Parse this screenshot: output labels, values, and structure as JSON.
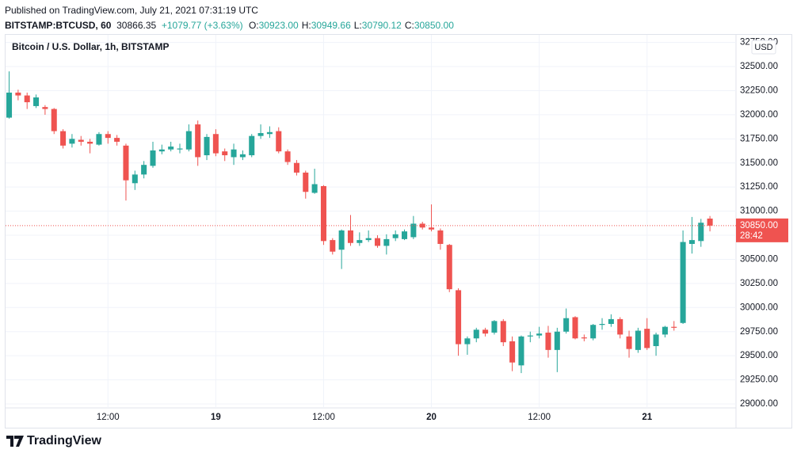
{
  "header": {
    "published": "Published on TradingView.com, July 21, 2021 07:31:19 UTC",
    "symbol": "BITSTAMP:BTCUSD, 60",
    "price": "30866.35",
    "change": "+1079.77 (+3.63%)",
    "ohlc": [
      {
        "label": "O:",
        "value": "30923.00"
      },
      {
        "label": "H:",
        "value": "30949.66"
      },
      {
        "label": "L:",
        "value": "30790.12"
      },
      {
        "label": "C:",
        "value": "30850.00"
      }
    ]
  },
  "footer": {
    "logo": "TradingView"
  },
  "chart_data": {
    "type": "candlestick",
    "title": "Bitcoin / U.S. Dollar, 1h, BITSTAMP",
    "currency": "USD",
    "up_color": "#26a69a",
    "down_color": "#ef5350",
    "grid": true,
    "x": [
      1,
      2,
      3,
      4,
      5,
      6,
      7,
      8,
      9,
      10,
      11,
      12,
      13,
      14,
      15,
      16,
      17,
      18,
      19,
      20,
      21,
      22,
      23,
      24,
      25,
      26,
      27,
      28,
      29,
      30,
      31,
      32,
      33,
      34,
      35,
      36,
      37,
      38,
      39,
      40,
      41,
      42,
      43,
      44,
      45,
      46,
      47,
      48,
      49,
      50,
      51,
      52,
      53,
      54,
      55,
      56,
      57,
      58,
      59,
      60,
      61,
      62,
      63,
      64,
      65,
      66,
      67,
      68,
      69,
      70,
      71,
      72,
      73,
      74,
      75,
      76,
      77,
      78,
      79
    ],
    "open": [
      31970,
      32230,
      32200,
      32090,
      32080,
      32060,
      31830,
      31700,
      31740,
      31720,
      31690,
      31800,
      31760,
      31680,
      31290,
      31380,
      31470,
      31620,
      31640,
      31640,
      31640,
      31900,
      31580,
      31800,
      31620,
      31560,
      31560,
      31580,
      31780,
      31800,
      31830,
      31620,
      31500,
      31400,
      31190,
      31260,
      30700,
      30600,
      30800,
      30670,
      30700,
      30720,
      30640,
      30720,
      30710,
      30730,
      30870,
      30830,
      30800,
      30650,
      30180,
      29620,
      29680,
      29770,
      29740,
      29860,
      29650,
      29400,
      29700,
      29710,
      29740,
      29560,
      29750,
      29900,
      29690,
      29680,
      29820,
      29830,
      29880,
      29700,
      29560,
      29780,
      29600,
      29720,
      29800,
      29840,
      30660,
      30690,
      30923
    ],
    "high": [
      32450,
      32260,
      32230,
      32210,
      32100,
      32070,
      31850,
      31800,
      31780,
      31750,
      31820,
      31830,
      31790,
      31700,
      31420,
      31520,
      31720,
      31690,
      31720,
      31700,
      31900,
      31940,
      31800,
      31850,
      31650,
      31700,
      31630,
      31800,
      31900,
      31880,
      31870,
      31640,
      31530,
      31420,
      31440,
      31270,
      30720,
      30810,
      30960,
      30780,
      30800,
      30750,
      30760,
      30800,
      30810,
      30950,
      30890,
      31070,
      30820,
      30660,
      30200,
      29700,
      29790,
      29790,
      29870,
      29880,
      29700,
      29710,
      29750,
      29800,
      29810,
      29790,
      29990,
      29910,
      29720,
      29830,
      29890,
      29930,
      29900,
      29760,
      29790,
      29890,
      29740,
      29810,
      29860,
      30800,
      30940,
      30920,
      30949.66
    ],
    "low": [
      31960,
      32150,
      32060,
      32070,
      32000,
      31800,
      31650,
      31660,
      31680,
      31600,
      31680,
      31700,
      31680,
      31110,
      31220,
      31340,
      31450,
      31590,
      31620,
      31600,
      31620,
      31470,
      31530,
      31570,
      31520,
      31480,
      31530,
      31560,
      31750,
      31760,
      31600,
      31480,
      31370,
      31130,
      31180,
      30650,
      30550,
      30400,
      30640,
      30640,
      30680,
      30620,
      30550,
      30690,
      30700,
      30710,
      30810,
      30790,
      30600,
      30160,
      29500,
      29510,
      29640,
      29700,
      29720,
      29600,
      29340,
      29320,
      29640,
      29680,
      29480,
      29330,
      29730,
      29670,
      29650,
      29660,
      29770,
      29800,
      29680,
      29480,
      29530,
      29560,
      29500,
      29690,
      29760,
      29830,
      30560,
      30630,
      30790.12
    ],
    "close": [
      32230,
      32200,
      32130,
      32180,
      32060,
      31830,
      31680,
      31750,
      31720,
      31700,
      31800,
      31760,
      31720,
      31320,
      31380,
      31480,
      31630,
      31640,
      31670,
      31650,
      31830,
      31560,
      31770,
      31600,
      31580,
      31640,
      31590,
      31780,
      31810,
      31820,
      31620,
      31510,
      31400,
      31200,
      31280,
      30690,
      30580,
      30800,
      30670,
      30700,
      30720,
      30640,
      30710,
      30760,
      30790,
      30870,
      30830,
      30810,
      30660,
      30190,
      29620,
      29680,
      29770,
      29730,
      29860,
      29640,
      29430,
      29700,
      29710,
      29730,
      29560,
      29750,
      29890,
      29680,
      29680,
      29820,
      29830,
      29880,
      29720,
      29570,
      29760,
      29580,
      29720,
      29800,
      29790,
      30680,
      30700,
      30880,
      30850
    ],
    "xlim": [
      0.6,
      81.9
    ],
    "xticks": [
      {
        "value": 12,
        "label": "12:00"
      },
      {
        "value": 24,
        "label": "19"
      },
      {
        "value": 36,
        "label": "12:00"
      },
      {
        "value": 48,
        "label": "20"
      },
      {
        "value": 60,
        "label": "12:00"
      },
      {
        "value": 72,
        "label": "21"
      }
    ],
    "ylim": [
      28959,
      32829
    ],
    "yticks": [
      {
        "value": 29000,
        "label": "29000.00"
      },
      {
        "value": 29250,
        "label": "29250.00"
      },
      {
        "value": 29500,
        "label": "29500.00"
      },
      {
        "value": 29750,
        "label": "29750.00"
      },
      {
        "value": 30000,
        "label": "30000.00"
      },
      {
        "value": 30250,
        "label": "30250.00"
      },
      {
        "value": 30500,
        "label": "30500.00"
      },
      {
        "value": 30750,
        "label": "30750.00"
      },
      {
        "value": 31000,
        "label": "31000.00"
      },
      {
        "value": 31250,
        "label": "31250.00"
      },
      {
        "value": 31500,
        "label": "31500.00"
      },
      {
        "value": 31750,
        "label": "31750.00"
      },
      {
        "value": 32000,
        "label": "32000.00"
      },
      {
        "value": 32250,
        "label": "32250.00"
      },
      {
        "value": 32500,
        "label": "32500.00"
      },
      {
        "value": 32750,
        "label": "32750.00"
      }
    ],
    "last_price": {
      "value": 30850,
      "label": "30850.00"
    },
    "countdown": "28:42"
  }
}
